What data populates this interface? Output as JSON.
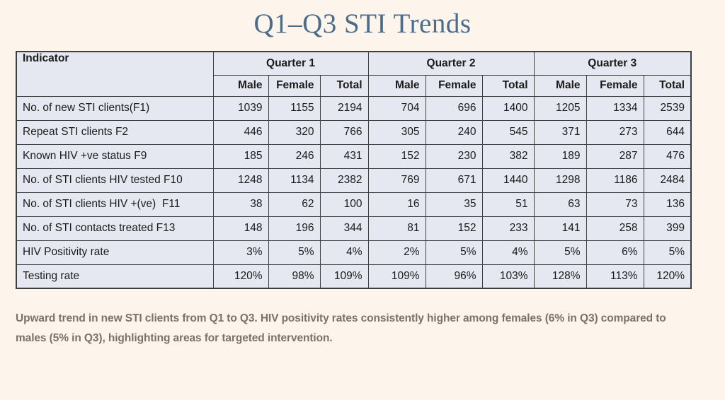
{
  "page": {
    "title": "Q1–Q3 STI Trends",
    "summary": "Upward trend in new STI clients from Q1 to Q3. HIV positivity rates consistently higher among females (6% in Q3) compared to males (5% in Q3), highlighting areas for targeted intervention."
  },
  "colors": {
    "page_bg": "#fdf5ec",
    "cell_bg": "#e5e8f1",
    "border": "#3e3e3e",
    "title": "#4c6c8c",
    "summary_text": "#7c7168",
    "table_text": "#1b1b1b"
  },
  "table": {
    "indicator_header": "Indicator",
    "quarter_headers": [
      "Quarter 1",
      "Quarter 2",
      "Quarter 3"
    ],
    "sub_headers": [
      "Male",
      "Female",
      "Total"
    ],
    "rows": [
      {
        "indicator": "No. of new STI clients(F1)",
        "values": [
          "1039",
          "1155",
          "2194",
          "704",
          "696",
          "1400",
          "1205",
          "1334",
          "2539"
        ]
      },
      {
        "indicator": "Repeat STI clients F2",
        "values": [
          "446",
          "320",
          "766",
          "305",
          "240",
          "545",
          "371",
          "273",
          "644"
        ]
      },
      {
        "indicator": "Known HIV +ve status F9",
        "values": [
          "185",
          "246",
          "431",
          "152",
          "230",
          "382",
          "189",
          "287",
          "476"
        ]
      },
      {
        "indicator": "No. of STI clients HIV tested F10",
        "values": [
          "1248",
          "1134",
          "2382",
          "769",
          "671",
          "1440",
          "1298",
          "1186",
          "2484"
        ]
      },
      {
        "indicator": "No. of STI clients HIV +(ve)  F11",
        "values": [
          "38",
          "62",
          "100",
          "16",
          "35",
          "51",
          "63",
          "73",
          "136"
        ]
      },
      {
        "indicator": "No. of STI contacts treated F13",
        "values": [
          "148",
          "196",
          "344",
          "81",
          "152",
          "233",
          "141",
          "258",
          "399"
        ]
      },
      {
        "indicator": "HIV Positivity rate",
        "values": [
          "3%",
          "5%",
          "4%",
          "2%",
          "5%",
          "4%",
          "5%",
          "6%",
          "5%"
        ]
      },
      {
        "indicator": "Testing rate",
        "values": [
          "120%",
          "98%",
          "109%",
          "109%",
          "96%",
          "103%",
          "128%",
          "113%",
          "120%"
        ]
      }
    ]
  }
}
